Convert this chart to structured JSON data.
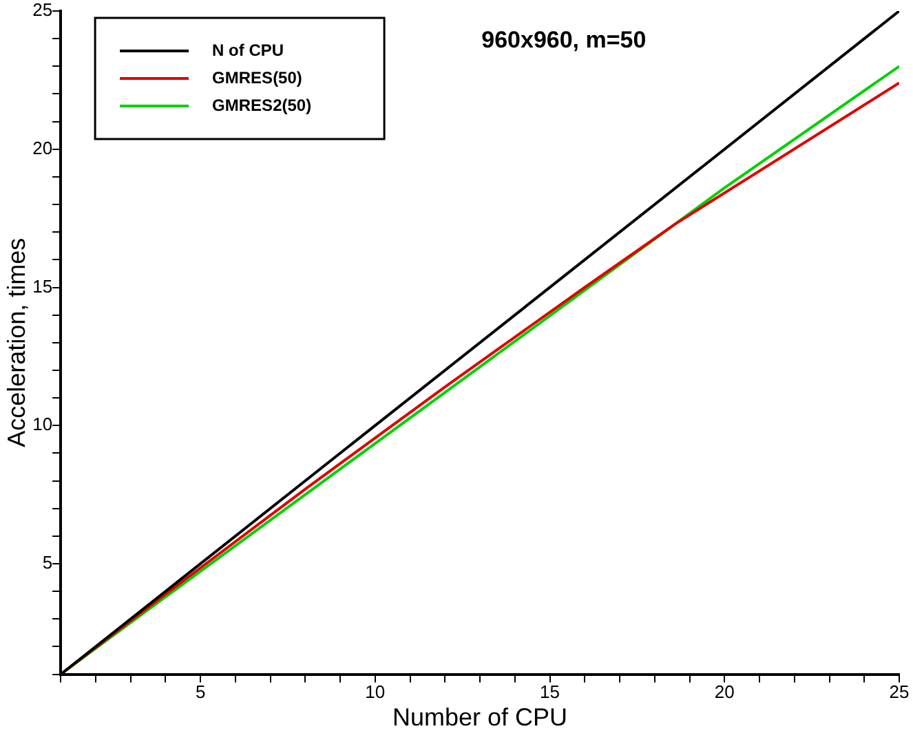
{
  "chart_data": {
    "type": "line",
    "title": "960x960, m=50",
    "xlabel": "Number of CPU",
    "ylabel": "Acceleration, times",
    "xlim": [
      1,
      25
    ],
    "ylim": [
      1,
      25
    ],
    "xticks": [
      {
        "value": 1,
        "label": null
      },
      {
        "value": 2,
        "label": null
      },
      {
        "value": 3,
        "label": null
      },
      {
        "value": 4,
        "label": null
      },
      5,
      {
        "value": 6,
        "label": null
      },
      {
        "value": 7,
        "label": null
      },
      {
        "value": 8,
        "label": null
      },
      {
        "value": 9,
        "label": null
      },
      10,
      {
        "value": 11,
        "label": null
      },
      {
        "value": 12,
        "label": null
      },
      {
        "value": 13,
        "label": null
      },
      {
        "value": 14,
        "label": null
      },
      15,
      {
        "value": 16,
        "label": null
      },
      {
        "value": 17,
        "label": null
      },
      {
        "value": 18,
        "label": null
      },
      {
        "value": 19,
        "label": null
      },
      20,
      {
        "value": 21,
        "label": null
      },
      {
        "value": 22,
        "label": null
      },
      {
        "value": 23,
        "label": null
      },
      {
        "value": 24,
        "label": null
      },
      25
    ],
    "yticks": [
      {
        "value": 1,
        "label": null
      },
      {
        "value": 2,
        "label": null
      },
      {
        "value": 3,
        "label": null
      },
      {
        "value": 4,
        "label": null
      },
      5,
      {
        "value": 6,
        "label": null
      },
      {
        "value": 7,
        "label": null
      },
      {
        "value": 8,
        "label": null
      },
      {
        "value": 9,
        "label": null
      },
      10,
      {
        "value": 11,
        "label": null
      },
      {
        "value": 12,
        "label": null
      },
      {
        "value": 13,
        "label": null
      },
      {
        "value": 14,
        "label": null
      },
      15,
      {
        "value": 16,
        "label": null
      },
      {
        "value": 17,
        "label": null
      },
      {
        "value": 18,
        "label": null
      },
      {
        "value": 19,
        "label": null
      },
      20,
      {
        "value": 21,
        "label": null
      },
      {
        "value": 22,
        "label": null
      },
      {
        "value": 23,
        "label": null
      },
      {
        "value": 24,
        "label": null
      },
      25
    ],
    "grid": false,
    "legend": "top left",
    "marker": "none",
    "line_style": "solid",
    "series": [
      {
        "name": "N of CPU",
        "color": "#000000",
        "x": [
          1,
          25
        ],
        "values": [
          1,
          25
        ]
      },
      {
        "name": "GMRES(50)",
        "color": "#e00000",
        "x": [
          1,
          4,
          8,
          12,
          16,
          18.6,
          25
        ],
        "values": [
          1,
          3.9,
          7.7,
          11.4,
          15.0,
          17.3,
          22.4
        ]
      },
      {
        "name": "GMRES2(50)",
        "color": "#00d000",
        "x": [
          1,
          4,
          8,
          12,
          16,
          20,
          25
        ],
        "values": [
          1,
          3.8,
          7.5,
          11.2,
          14.9,
          18.6,
          23.0
        ]
      }
    ]
  }
}
